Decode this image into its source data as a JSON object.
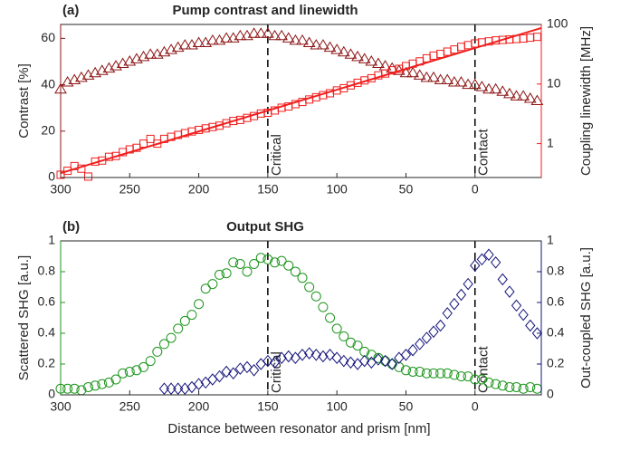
{
  "chart_data": [
    {
      "type": "scatter",
      "panel_label": "(a)",
      "title": "Pump contrast and linewidth",
      "ylabel": "Contrast [%]",
      "y2label": "Coupling linewidth [MHz]",
      "ylabel_color": "#8c1414",
      "y2label_color": "#f01e1e",
      "xlim": [
        300,
        -48
      ],
      "xticks": [
        300,
        250,
        200,
        150,
        100,
        50,
        0
      ],
      "ylim": [
        0,
        66
      ],
      "yticks": [
        0,
        20,
        40,
        60
      ],
      "y2lim": [
        0.27,
        100
      ],
      "y2ticks": [
        1,
        10,
        100
      ],
      "y2log": true,
      "vlines": [
        {
          "x": 150,
          "label": "Critical"
        },
        {
          "x": 0,
          "label": "Contact"
        }
      ],
      "series": [
        {
          "marker": "triangle",
          "color": "#8c1414",
          "axis": "y",
          "x": [
            300,
            295,
            290,
            285,
            280,
            275,
            270,
            265,
            260,
            255,
            250,
            245,
            240,
            235,
            230,
            225,
            220,
            215,
            210,
            205,
            200,
            195,
            190,
            185,
            180,
            175,
            170,
            165,
            160,
            155,
            150,
            145,
            140,
            135,
            130,
            125,
            120,
            115,
            110,
            105,
            100,
            95,
            90,
            85,
            80,
            75,
            70,
            65,
            60,
            55,
            50,
            45,
            40,
            35,
            30,
            25,
            20,
            15,
            10,
            5,
            0,
            -5,
            -10,
            -15,
            -20,
            -25,
            -30,
            -35,
            -40,
            -45
          ],
          "values": [
            38,
            41,
            42,
            43,
            44,
            45,
            46,
            47,
            48,
            49,
            50,
            51,
            52,
            53,
            53,
            54,
            55,
            56,
            57,
            57,
            58,
            58,
            59,
            59,
            60,
            60,
            61,
            61,
            62,
            62,
            62,
            61,
            61,
            60,
            59,
            59,
            58,
            57,
            57,
            56,
            55,
            54,
            53,
            52,
            51,
            50,
            49,
            48,
            47,
            46,
            45,
            45,
            44,
            43,
            43,
            42,
            42,
            41,
            41,
            40,
            40,
            39,
            38,
            38,
            37,
            36,
            35,
            35,
            34,
            33
          ]
        },
        {
          "marker": "square",
          "color": "#f01e1e",
          "axis": "y2",
          "x": [
            300,
            295,
            290,
            285,
            280,
            275,
            270,
            265,
            260,
            255,
            250,
            245,
            240,
            235,
            230,
            225,
            220,
            215,
            210,
            205,
            200,
            195,
            190,
            185,
            180,
            175,
            170,
            165,
            160,
            155,
            150,
            145,
            140,
            135,
            130,
            125,
            120,
            115,
            110,
            105,
            100,
            95,
            90,
            85,
            80,
            75,
            70,
            65,
            60,
            55,
            50,
            45,
            40,
            35,
            30,
            25,
            20,
            15,
            10,
            5,
            0,
            -5,
            -10,
            -15,
            -20,
            -25,
            -30,
            -35,
            -40,
            -45
          ],
          "values": [
            0.3,
            0.35,
            0.42,
            0.38,
            0.28,
            0.5,
            0.52,
            0.6,
            0.62,
            0.72,
            0.8,
            0.85,
            1.0,
            1.2,
            1.0,
            1.2,
            1.3,
            1.4,
            1.5,
            1.6,
            1.7,
            1.8,
            1.9,
            2.0,
            2.2,
            2.4,
            2.5,
            2.7,
            2.9,
            3.2,
            3.3,
            3.6,
            4.0,
            4.2,
            4.6,
            5.0,
            5.5,
            6.0,
            6.5,
            7.0,
            7.8,
            8.5,
            9.5,
            10.5,
            11.5,
            12.5,
            14,
            15,
            17,
            18,
            20,
            22,
            24,
            27,
            30,
            32,
            35,
            38,
            42,
            45,
            48,
            50,
            52,
            54,
            55,
            56,
            57,
            58,
            60,
            62
          ]
        },
        {
          "marker": "line",
          "color": "#f01e1e",
          "axis": "y2",
          "x": [
            300,
            -48
          ],
          "values": [
            0.32,
            87
          ]
        }
      ]
    },
    {
      "type": "scatter",
      "panel_label": "(b)",
      "title": "Output SHG",
      "xlabel": "Distance between resonator and prism [nm]",
      "ylabel": "Scattered SHG [a.u.]",
      "y2label": "Out-coupled SHG [a.u.]",
      "ylabel_color": "#1e961e",
      "y2label_color": "#14147a",
      "xlim": [
        300,
        -48
      ],
      "xticks": [
        300,
        250,
        200,
        150,
        100,
        50,
        0
      ],
      "ylim": [
        0,
        1
      ],
      "yticks": [
        0,
        0.2,
        0.4,
        0.6,
        0.8,
        1
      ],
      "y2lim": [
        0,
        1
      ],
      "y2ticks": [
        0,
        0.2,
        0.4,
        0.6,
        0.8,
        1
      ],
      "vlines": [
        {
          "x": 150,
          "label": "Critical"
        },
        {
          "x": 0,
          "label": "Contact"
        }
      ],
      "series": [
        {
          "marker": "circle",
          "color": "#1e961e",
          "axis": "y",
          "x": [
            300,
            295,
            290,
            285,
            280,
            275,
            270,
            265,
            260,
            255,
            250,
            245,
            240,
            235,
            230,
            225,
            220,
            215,
            210,
            205,
            200,
            195,
            190,
            185,
            180,
            175,
            170,
            165,
            160,
            155,
            150,
            145,
            140,
            135,
            130,
            125,
            120,
            115,
            110,
            105,
            100,
            95,
            90,
            85,
            80,
            75,
            70,
            65,
            60,
            55,
            50,
            45,
            40,
            35,
            30,
            25,
            20,
            15,
            10,
            5,
            0,
            -5,
            -10,
            -15,
            -20,
            -25,
            -30,
            -35,
            -40,
            -45
          ],
          "values": [
            0.04,
            0.04,
            0.04,
            0.03,
            0.05,
            0.06,
            0.07,
            0.08,
            0.1,
            0.14,
            0.15,
            0.16,
            0.18,
            0.22,
            0.28,
            0.33,
            0.37,
            0.43,
            0.48,
            0.52,
            0.59,
            0.69,
            0.72,
            0.78,
            0.79,
            0.86,
            0.85,
            0.8,
            0.85,
            0.89,
            0.88,
            0.86,
            0.87,
            0.84,
            0.8,
            0.76,
            0.7,
            0.64,
            0.57,
            0.5,
            0.43,
            0.38,
            0.34,
            0.32,
            0.28,
            0.26,
            0.24,
            0.22,
            0.2,
            0.18,
            0.16,
            0.15,
            0.15,
            0.14,
            0.14,
            0.14,
            0.14,
            0.13,
            0.12,
            0.12,
            0.1,
            0.1,
            0.08,
            0.07,
            0.06,
            0.05,
            0.05,
            0.04,
            0.05,
            0.04
          ]
        },
        {
          "marker": "diamond",
          "color": "#14147a",
          "axis": "y2",
          "x": [
            225,
            220,
            215,
            210,
            205,
            200,
            195,
            190,
            185,
            180,
            175,
            170,
            165,
            160,
            155,
            150,
            145,
            140,
            135,
            130,
            125,
            120,
            115,
            110,
            105,
            100,
            95,
            90,
            85,
            80,
            75,
            70,
            65,
            60,
            55,
            50,
            45,
            40,
            35,
            30,
            25,
            20,
            15,
            10,
            5,
            0,
            -5,
            -10,
            -15,
            -20,
            -25,
            -30,
            -35,
            -40,
            -45
          ],
          "values": [
            0.04,
            0.04,
            0.04,
            0.04,
            0.05,
            0.07,
            0.08,
            0.1,
            0.12,
            0.15,
            0.14,
            0.17,
            0.18,
            0.16,
            0.2,
            0.22,
            0.21,
            0.24,
            0.25,
            0.24,
            0.26,
            0.27,
            0.26,
            0.25,
            0.26,
            0.24,
            0.22,
            0.21,
            0.2,
            0.22,
            0.21,
            0.23,
            0.22,
            0.2,
            0.24,
            0.26,
            0.29,
            0.33,
            0.37,
            0.41,
            0.45,
            0.53,
            0.59,
            0.65,
            0.72,
            0.84,
            0.88,
            0.91,
            0.86,
            0.75,
            0.67,
            0.58,
            0.52,
            0.45,
            0.4
          ]
        }
      ]
    }
  ]
}
